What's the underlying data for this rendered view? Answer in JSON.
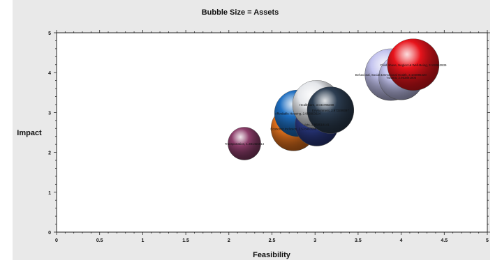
{
  "chart_data": {
    "type": "scatter",
    "title": "Bubble Size = Assets",
    "xlabel": "Feasibility",
    "ylabel": "Impact",
    "xlim": [
      0,
      5
    ],
    "ylim": [
      0,
      5
    ],
    "x_ticks": [
      "0",
      "0.5",
      "1",
      "1.5",
      "2",
      "2.5",
      "3",
      "3.5",
      "4",
      "4.5",
      "5"
    ],
    "y_ticks": [
      "0",
      "1",
      "2",
      "3",
      "4",
      "5"
    ],
    "grid": false,
    "legend": "none",
    "bubbles": [
      {
        "label": "Transportation, 1.381455614",
        "x": 2.18,
        "y": 2.22,
        "size": 0.19,
        "color": "#8c3d6a"
      },
      {
        "label": "Economic Inclusion, 2.578483568",
        "x": 2.75,
        "y": 2.6,
        "size": 0.26,
        "color": "#e8741e"
      },
      {
        "label": "Affordable Housing, 2.902953624",
        "x": 2.8,
        "y": 2.98,
        "size": 0.27,
        "color": "#1f6fc1"
      },
      {
        "label": "Arts, 2.858518141",
        "x": 3.02,
        "y": 2.7,
        "size": 0.25,
        "color": "#2b3a85"
      },
      {
        "label": "Healthcare, 3.044785498",
        "x": 3.02,
        "y": 3.2,
        "size": 0.28,
        "color": "#e4e6ea"
      },
      {
        "label": "Environment, 2.973289397",
        "x": 3.18,
        "y": 3.06,
        "size": 0.27,
        "color": "#2d3e52"
      },
      {
        "label": "Behavioral, Social & Emotional Health, 3.102895420",
        "x": 3.88,
        "y": 3.95,
        "size": 0.3,
        "color": "#c3c3ef"
      },
      {
        "label": "Trauma, 2.953891905",
        "x": 4.0,
        "y": 3.88,
        "size": 0.26,
        "color": "#c3c3ef"
      },
      {
        "label": "Child Abuse, Neglect & Well-Being, 3.118962939",
        "x": 4.14,
        "y": 4.2,
        "size": 0.3,
        "color": "#e8141c"
      }
    ]
  }
}
